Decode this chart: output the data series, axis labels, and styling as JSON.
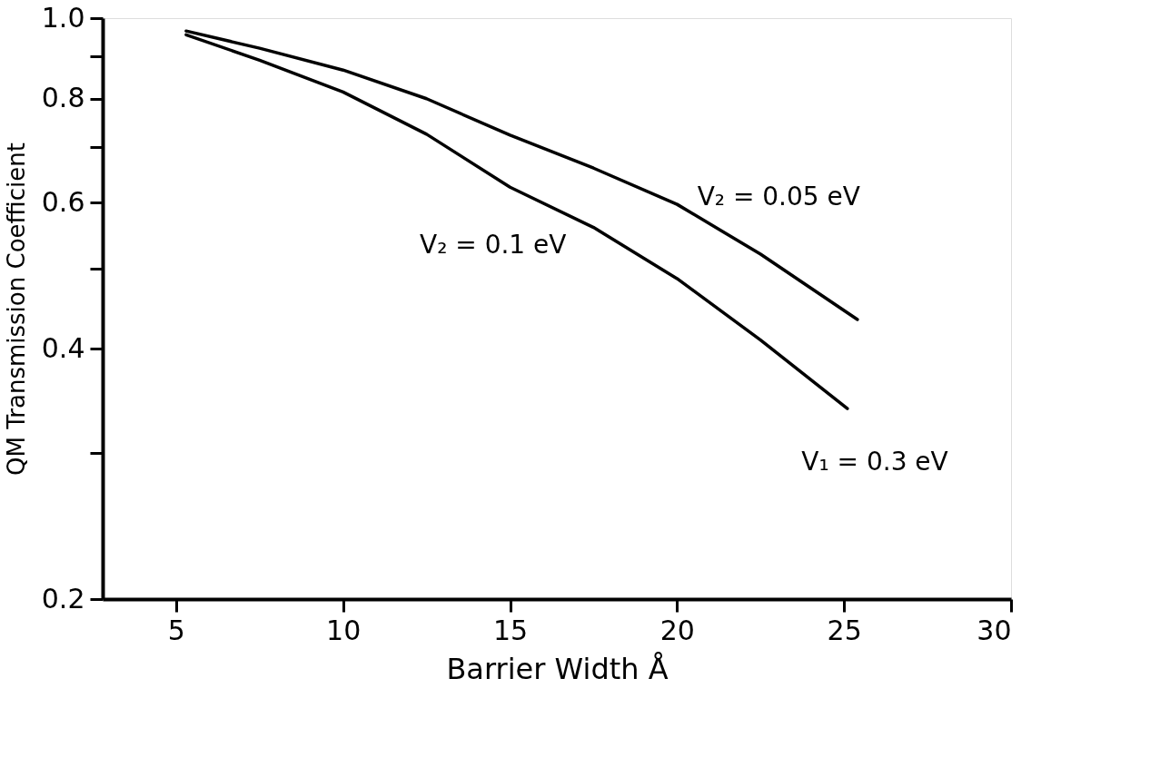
{
  "chart_data": {
    "type": "line",
    "xlabel": "Barrier Width Å",
    "ylabel": "QM Transmission Coefficient",
    "log": "y",
    "xlim": [
      2.8,
      30
    ],
    "xticks": [
      5,
      10,
      15,
      20,
      25,
      30
    ],
    "ylim": [
      0.2,
      1.0
    ],
    "yticks": [
      {
        "value": 0.2,
        "label": "0.2"
      },
      {
        "value": 0.3,
        "label": null
      },
      {
        "value": 0.4,
        "label": "0.4"
      },
      {
        "value": 0.5,
        "label": null
      },
      {
        "value": 0.6,
        "label": "0.6"
      },
      {
        "value": 0.7,
        "label": null
      },
      {
        "value": 0.8,
        "label": "0.8"
      },
      {
        "value": 0.9,
        "label": null
      },
      {
        "value": 1.0,
        "label": "1.0"
      }
    ],
    "grid": false,
    "legend": false,
    "marker": "none",
    "line_style": "solid",
    "series": [
      {
        "name": "V₂ = 0.05 eV",
        "color": "#000000",
        "x": [
          5.3,
          7.5,
          10,
          12.5,
          15,
          17.5,
          20,
          22.5,
          25.4
        ],
        "values": [
          0.965,
          0.92,
          0.866,
          0.8,
          0.723,
          0.66,
          0.597,
          0.52,
          0.434
        ]
      },
      {
        "name": "V₂ = 0.1 eV",
        "color": "#000000",
        "x": [
          5.3,
          7.5,
          10,
          12.5,
          15,
          17.5,
          20,
          22.5,
          25.1
        ],
        "values": [
          0.955,
          0.89,
          0.815,
          0.725,
          0.626,
          0.56,
          0.486,
          0.41,
          0.339
        ]
      }
    ],
    "annotations": [
      "V₁ = 0.3 eV"
    ]
  }
}
